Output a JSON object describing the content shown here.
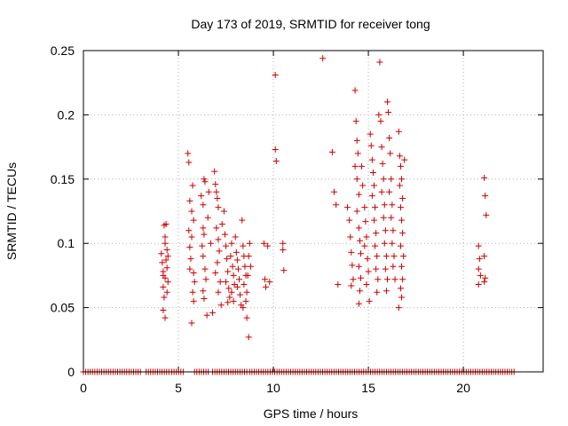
{
  "colors": {
    "series": "#cc0000",
    "grid": "#b0b0b0",
    "frame": "#000000"
  },
  "chart_data": {
    "type": "scatter",
    "title": "Day 173 of 2019, SRMTID for receiver tong",
    "xlabel": "GPS time / hours",
    "ylabel": "SRMTID / TECUs",
    "xlim": [
      0,
      24.2
    ],
    "ylim": [
      0,
      0.25
    ],
    "grid": true,
    "xticks": [
      0,
      5,
      10,
      15,
      20
    ],
    "xtick_labels": [
      "0",
      "5",
      "10",
      "15",
      "20"
    ],
    "yticks": [
      0,
      0.05,
      0.1,
      0.15,
      0.2,
      0.25
    ],
    "ytick_labels": [
      "0",
      "0.05",
      "0.1",
      "0.15",
      "0.2",
      "0.25"
    ],
    "series": [
      {
        "name": "SRMTID",
        "marker": "+",
        "points": [
          [
            4.1,
            0.092
          ],
          [
            4.15,
            0.085
          ],
          [
            4.2,
            0.078
          ],
          [
            4.2,
            0.066
          ],
          [
            4.25,
            0.058
          ],
          [
            4.2,
            0.048
          ],
          [
            4.3,
            0.042
          ],
          [
            4.3,
            0.073
          ],
          [
            4.35,
            0.087
          ],
          [
            4.3,
            0.1
          ],
          [
            4.35,
            0.115
          ],
          [
            4.25,
            0.114
          ],
          [
            4.4,
            0.095
          ],
          [
            4.4,
            0.081
          ],
          [
            4.45,
            0.07
          ],
          [
            4.4,
            0.062
          ],
          [
            4.3,
            0.105
          ],
          [
            4.2,
            0.075
          ],
          [
            4.45,
            0.09
          ],
          [
            5.5,
            0.17
          ],
          [
            5.55,
            0.163
          ],
          [
            5.6,
            0.133
          ],
          [
            5.7,
            0.125
          ],
          [
            5.75,
            0.145
          ],
          [
            5.8,
            0.118
          ],
          [
            5.7,
            0.105
          ],
          [
            5.6,
            0.097
          ],
          [
            5.65,
            0.088
          ],
          [
            5.8,
            0.077
          ],
          [
            5.85,
            0.07
          ],
          [
            5.75,
            0.062
          ],
          [
            5.8,
            0.055
          ],
          [
            5.7,
            0.038
          ],
          [
            5.55,
            0.11
          ],
          [
            5.6,
            0.08
          ],
          [
            6.2,
            0.137
          ],
          [
            6.3,
            0.13
          ],
          [
            6.35,
            0.15
          ],
          [
            6.4,
            0.148
          ],
          [
            6.3,
            0.112
          ],
          [
            6.35,
            0.107
          ],
          [
            6.25,
            0.098
          ],
          [
            6.3,
            0.09
          ],
          [
            6.4,
            0.08
          ],
          [
            6.45,
            0.072
          ],
          [
            6.3,
            0.063
          ],
          [
            6.35,
            0.057
          ],
          [
            6.5,
            0.044
          ],
          [
            6.55,
            0.12
          ],
          [
            6.6,
            0.14
          ],
          [
            6.7,
            0.1
          ],
          [
            6.8,
            0.046
          ],
          [
            6.9,
            0.156
          ],
          [
            6.95,
            0.146
          ],
          [
            7.0,
            0.14
          ],
          [
            7.05,
            0.135
          ],
          [
            7.1,
            0.128
          ],
          [
            7.0,
            0.112
          ],
          [
            7.1,
            0.103
          ],
          [
            7.15,
            0.094
          ],
          [
            7.05,
            0.085
          ],
          [
            6.95,
            0.077
          ],
          [
            7.2,
            0.07
          ],
          [
            7.1,
            0.062
          ],
          [
            7.25,
            0.052
          ],
          [
            7.3,
            0.115
          ],
          [
            7.4,
            0.125
          ],
          [
            7.45,
            0.107
          ],
          [
            7.5,
            0.098
          ],
          [
            7.55,
            0.088
          ],
          [
            7.6,
            0.078
          ],
          [
            7.5,
            0.07
          ],
          [
            7.65,
            0.065
          ],
          [
            7.7,
            0.058
          ],
          [
            7.6,
            0.054
          ],
          [
            7.75,
            0.09
          ],
          [
            7.8,
            0.1
          ],
          [
            7.85,
            0.082
          ],
          [
            7.9,
            0.075
          ],
          [
            7.95,
            0.068
          ],
          [
            7.8,
            0.062
          ],
          [
            7.9,
            0.055
          ],
          [
            8.0,
            0.105
          ],
          [
            8.05,
            0.093
          ],
          [
            8.1,
            0.087
          ],
          [
            8.15,
            0.08
          ],
          [
            8.2,
            0.072
          ],
          [
            8.1,
            0.066
          ],
          [
            8.25,
            0.06
          ],
          [
            8.3,
            0.052
          ],
          [
            8.35,
            0.118
          ],
          [
            8.4,
            0.098
          ],
          [
            8.45,
            0.09
          ],
          [
            8.5,
            0.082
          ],
          [
            8.55,
            0.075
          ],
          [
            8.45,
            0.068
          ],
          [
            8.6,
            0.062
          ],
          [
            8.55,
            0.055
          ],
          [
            8.4,
            0.05
          ],
          [
            8.6,
            0.042
          ],
          [
            8.7,
            0.027
          ],
          [
            8.65,
            0.075
          ],
          [
            8.7,
            0.09
          ],
          [
            8.75,
            0.1
          ],
          [
            8.8,
            0.082
          ],
          [
            9.5,
            0.1
          ],
          [
            9.55,
            0.072
          ],
          [
            9.6,
            0.066
          ],
          [
            9.7,
            0.098
          ],
          [
            9.8,
            0.07
          ],
          [
            10.1,
            0.231
          ],
          [
            10.1,
            0.173
          ],
          [
            10.15,
            0.164
          ],
          [
            10.5,
            0.1
          ],
          [
            10.55,
            0.079
          ],
          [
            10.5,
            0.095
          ],
          [
            12.6,
            0.244
          ],
          [
            13.1,
            0.171
          ],
          [
            13.2,
            0.14
          ],
          [
            13.3,
            0.13
          ],
          [
            13.4,
            0.068
          ],
          [
            13.9,
            0.128
          ],
          [
            14.0,
            0.118
          ],
          [
            14.05,
            0.105
          ],
          [
            14.1,
            0.093
          ],
          [
            14.15,
            0.083
          ],
          [
            14.2,
            0.072
          ],
          [
            14.1,
            0.067
          ],
          [
            14.3,
            0.219
          ],
          [
            14.35,
            0.195
          ],
          [
            14.4,
            0.18
          ],
          [
            14.45,
            0.17
          ],
          [
            14.3,
            0.16
          ],
          [
            14.4,
            0.15
          ],
          [
            14.5,
            0.138
          ],
          [
            14.4,
            0.125
          ],
          [
            14.5,
            0.112
          ],
          [
            14.55,
            0.102
          ],
          [
            14.6,
            0.092
          ],
          [
            14.5,
            0.082
          ],
          [
            14.6,
            0.073
          ],
          [
            14.55,
            0.063
          ],
          [
            14.5,
            0.053
          ],
          [
            14.65,
            0.16
          ],
          [
            14.7,
            0.145
          ],
          [
            14.8,
            0.128
          ],
          [
            14.85,
            0.117
          ],
          [
            14.9,
            0.105
          ],
          [
            14.8,
            0.098
          ],
          [
            14.95,
            0.088
          ],
          [
            15.0,
            0.078
          ],
          [
            14.9,
            0.068
          ],
          [
            15.05,
            0.055
          ],
          [
            15.1,
            0.185
          ],
          [
            15.15,
            0.176
          ],
          [
            15.2,
            0.165
          ],
          [
            15.25,
            0.155
          ],
          [
            15.3,
            0.145
          ],
          [
            15.2,
            0.137
          ],
          [
            15.35,
            0.128
          ],
          [
            15.3,
            0.118
          ],
          [
            15.4,
            0.108
          ],
          [
            15.35,
            0.098
          ],
          [
            15.45,
            0.09
          ],
          [
            15.4,
            0.08
          ],
          [
            15.5,
            0.072
          ],
          [
            15.45,
            0.062
          ],
          [
            15.55,
            0.2
          ],
          [
            15.6,
            0.241
          ],
          [
            15.65,
            0.195
          ],
          [
            15.7,
            0.175
          ],
          [
            15.75,
            0.162
          ],
          [
            15.8,
            0.15
          ],
          [
            15.7,
            0.14
          ],
          [
            15.85,
            0.13
          ],
          [
            15.8,
            0.12
          ],
          [
            15.9,
            0.11
          ],
          [
            15.85,
            0.1
          ],
          [
            15.95,
            0.09
          ],
          [
            15.9,
            0.08
          ],
          [
            16.0,
            0.072
          ],
          [
            15.95,
            0.063
          ],
          [
            16.0,
            0.21
          ],
          [
            16.05,
            0.202
          ],
          [
            16.1,
            0.182
          ],
          [
            16.15,
            0.17
          ],
          [
            16.2,
            0.15
          ],
          [
            16.1,
            0.14
          ],
          [
            16.25,
            0.13
          ],
          [
            16.2,
            0.12
          ],
          [
            16.3,
            0.11
          ],
          [
            16.25,
            0.1
          ],
          [
            16.35,
            0.09
          ],
          [
            16.3,
            0.082
          ],
          [
            16.4,
            0.072
          ],
          [
            16.6,
            0.187
          ],
          [
            16.65,
            0.168
          ],
          [
            16.7,
            0.16
          ],
          [
            16.75,
            0.15
          ],
          [
            16.65,
            0.145
          ],
          [
            16.8,
            0.135
          ],
          [
            16.7,
            0.128
          ],
          [
            16.75,
            0.118
          ],
          [
            16.8,
            0.108
          ],
          [
            16.7,
            0.098
          ],
          [
            16.85,
            0.09
          ],
          [
            16.75,
            0.082
          ],
          [
            16.8,
            0.072
          ],
          [
            16.7,
            0.065
          ],
          [
            16.75,
            0.058
          ],
          [
            16.6,
            0.05
          ],
          [
            16.9,
            0.165
          ],
          [
            20.8,
            0.098
          ],
          [
            20.85,
            0.088
          ],
          [
            20.8,
            0.08
          ],
          [
            20.9,
            0.075
          ],
          [
            20.8,
            0.068
          ],
          [
            21.1,
            0.151
          ],
          [
            21.15,
            0.137
          ],
          [
            21.2,
            0.122
          ],
          [
            21.1,
            0.09
          ],
          [
            21.15,
            0.073
          ],
          [
            21.1,
            0.07
          ]
        ],
        "zero_segments": [
          [
            0,
            3.0
          ],
          [
            3.3,
            4.5
          ],
          [
            4.65,
            5.3
          ],
          [
            5.85,
            6.6
          ],
          [
            6.8,
            8.6
          ],
          [
            8.75,
            22.7
          ]
        ]
      }
    ]
  }
}
